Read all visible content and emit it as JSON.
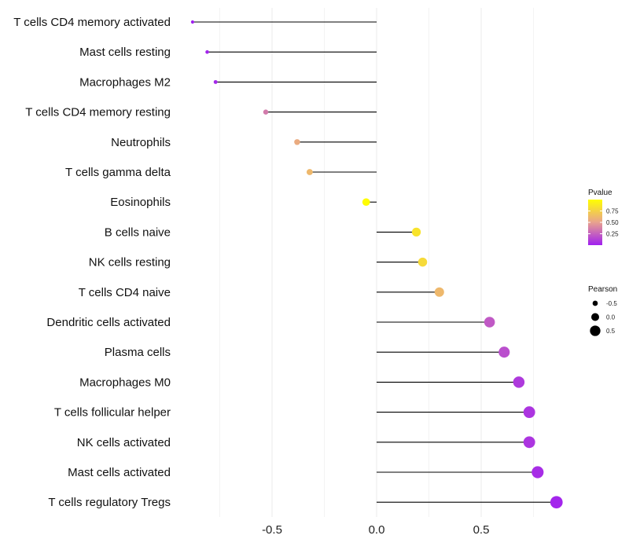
{
  "chart_data": {
    "type": "lollipop",
    "title": "",
    "xlabel": "",
    "ylabel": "",
    "xlim": [
      -0.88,
      0.92
    ],
    "x_ticks": [
      -0.5,
      0.0,
      0.5
    ],
    "x_tick_labels": [
      "-0.5",
      "0.0",
      "0.5"
    ],
    "categories": [
      "T cells CD4 memory activated",
      "Mast cells resting",
      "Macrophages M2",
      "T cells CD4 memory resting",
      "Neutrophils",
      "T cells gamma delta",
      "Eosinophils",
      "B cells naive",
      "NK cells resting",
      "T cells CD4 naive",
      "Dendritic cells activated",
      "Plasma cells",
      "Macrophages M0",
      "T cells follicular helper",
      "NK cells activated",
      "Mast cells activated",
      "T cells regulatory  Tregs"
    ],
    "pearson": [
      -0.88,
      -0.81,
      -0.77,
      -0.53,
      -0.38,
      -0.32,
      -0.05,
      0.19,
      0.22,
      0.3,
      0.54,
      0.61,
      0.68,
      0.73,
      0.73,
      0.77,
      0.86
    ],
    "pvalue": [
      0.001,
      0.02,
      0.03,
      0.35,
      0.55,
      0.62,
      0.99,
      0.85,
      0.8,
      0.62,
      0.22,
      0.18,
      0.1,
      0.08,
      0.08,
      0.05,
      0.02
    ],
    "legend": {
      "color_title": "Pvalue",
      "color_ticks": [
        0.25,
        0.5,
        0.75
      ],
      "color_tick_labels": [
        "0.25",
        "0.50",
        "0.75"
      ],
      "color_range": [
        0.0,
        1.0
      ],
      "size_title": "Pearson",
      "size_values": [
        -0.5,
        0.0,
        0.5
      ],
      "size_labels": [
        "-0.5",
        "0.0",
        "0.5"
      ],
      "placement": "right"
    },
    "colors": {
      "low": "#a020f0",
      "mid": "#e8a28e",
      "high": "#ffff00",
      "segment": "#000000",
      "grid": "#ebebeb"
    }
  }
}
